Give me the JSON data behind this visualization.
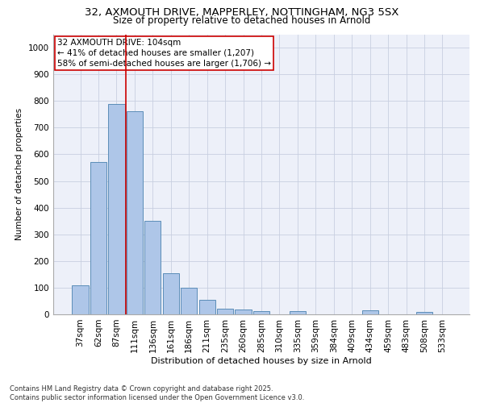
{
  "title1": "32, AXMOUTH DRIVE, MAPPERLEY, NOTTINGHAM, NG3 5SX",
  "title2": "Size of property relative to detached houses in Arnold",
  "xlabel": "Distribution of detached houses by size in Arnold",
  "ylabel": "Number of detached properties",
  "categories": [
    "37sqm",
    "62sqm",
    "87sqm",
    "111sqm",
    "136sqm",
    "161sqm",
    "186sqm",
    "211sqm",
    "235sqm",
    "260sqm",
    "285sqm",
    "310sqm",
    "335sqm",
    "359sqm",
    "384sqm",
    "409sqm",
    "434sqm",
    "459sqm",
    "483sqm",
    "508sqm",
    "533sqm"
  ],
  "values": [
    110,
    570,
    790,
    760,
    350,
    155,
    100,
    55,
    20,
    18,
    12,
    0,
    12,
    0,
    0,
    0,
    14,
    0,
    0,
    8,
    0
  ],
  "bar_color": "#aec6e8",
  "bar_edge_color": "#5b8db8",
  "vline_color": "#cc0000",
  "annotation_text": "32 AXMOUTH DRIVE: 104sqm\n← 41% of detached houses are smaller (1,207)\n58% of semi-detached houses are larger (1,706) →",
  "annotation_box_color": "#cc0000",
  "annotation_fontsize": 7.5,
  "background_color": "#edf0f9",
  "footer": "Contains HM Land Registry data © Crown copyright and database right 2025.\nContains public sector information licensed under the Open Government Licence v3.0.",
  "ylim": [
    0,
    1050
  ],
  "yticks": [
    0,
    100,
    200,
    300,
    400,
    500,
    600,
    700,
    800,
    900,
    1000
  ],
  "title1_fontsize": 9.5,
  "title2_fontsize": 8.5,
  "xlabel_fontsize": 8,
  "ylabel_fontsize": 7.5,
  "footer_fontsize": 6,
  "tick_fontsize": 7.5
}
